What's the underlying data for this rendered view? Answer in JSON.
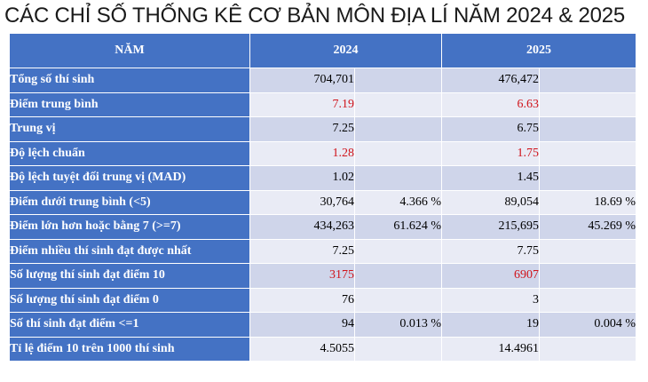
{
  "title": "CÁC CHỈ SỐ THỐNG KÊ CƠ BẢN MÔN ĐỊA LÍ NĂM 2024 & 2025",
  "header": {
    "label": "NĂM",
    "year_a": "2024",
    "year_b": "2025"
  },
  "rows": [
    {
      "label": "Tổng số thí sinh",
      "v2024": "704,701",
      "p2024": "",
      "v2025": "476,472",
      "p2025": ""
    },
    {
      "label": "Điểm trung bình",
      "v2024": "7.19",
      "p2024": "",
      "v2025": "6.63",
      "p2025": ""
    },
    {
      "label": "Trung vị",
      "v2024": "7.25",
      "p2024": "",
      "v2025": "6.75",
      "p2025": ""
    },
    {
      "label": "Độ lệch chuẩn",
      "v2024": "1.28",
      "p2024": "",
      "v2025": "1.75",
      "p2025": ""
    },
    {
      "label": "Độ lệch tuyệt đối trung vị (MAD)",
      "v2024": "1.02",
      "p2024": "",
      "v2025": "1.45",
      "p2025": ""
    },
    {
      "label": "Điểm dưới trung bình (<5)",
      "v2024": "30,764",
      "p2024": "4.366 %",
      "v2025": "89,054",
      "p2025": "18.69 %"
    },
    {
      "label": "Điểm lớn hơn hoặc bằng 7 (>=7)",
      "v2024": "434,263",
      "p2024": "61.624 %",
      "v2025": "215,695",
      "p2025": "45.269 %"
    },
    {
      "label": "Điểm nhiều thí sinh đạt được nhất",
      "v2024": "7.25",
      "p2024": "",
      "v2025": "7.75",
      "p2025": ""
    },
    {
      "label": "Số lượng thí sinh đạt điểm 10",
      "v2024": "3175",
      "p2024": "",
      "v2025": "6907",
      "p2025": ""
    },
    {
      "label": "Số lượng thí sinh đạt điểm 0",
      "v2024": "76",
      "p2024": "",
      "v2025": "3",
      "p2025": ""
    },
    {
      "label": "Số thí sinh đạt điểm <=1",
      "v2024": "94",
      "p2024": "0.013 %",
      "v2025": "19",
      "p2025": "0.004 %"
    },
    {
      "label": "Tỉ lệ điểm 10 trên 1000 thí sinh",
      "v2024": "4.5055",
      "p2024": "",
      "v2025": "14.4961",
      "p2025": ""
    }
  ],
  "colors": {
    "header_bg": "#4472c4",
    "row_odd": "#cfd5ea",
    "row_even": "#e9ebf5",
    "highlight": "#d0141b"
  },
  "highlighted_rows": [
    "Điểm trung bình",
    "Độ lệch chuẩn",
    "Số lượng thí sinh đạt điểm 10"
  ]
}
